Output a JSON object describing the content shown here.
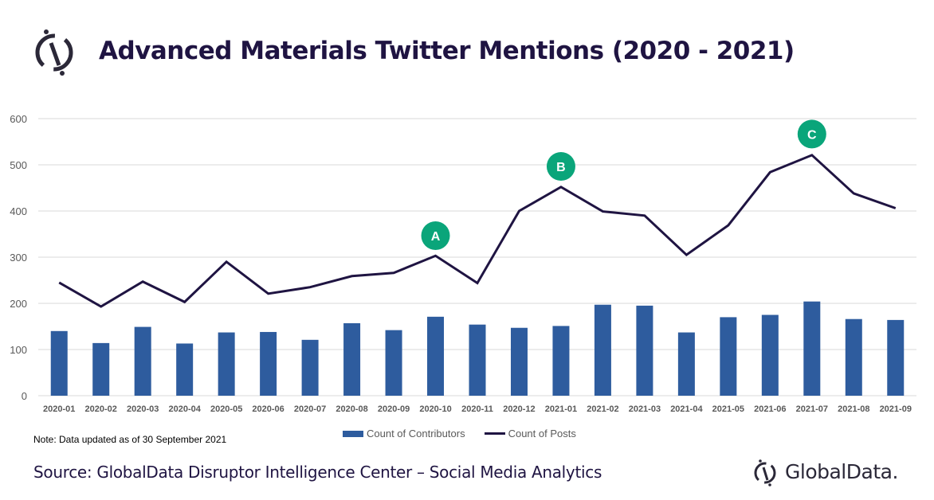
{
  "chart_data": {
    "type": "bar",
    "title": "Advanced Materials Twitter Mentions (2020 - 2021)",
    "xlabel": "",
    "ylabel": "",
    "ylim": [
      0,
      600
    ],
    "yticks": [
      "0",
      "100",
      "200",
      "300",
      "400",
      "500",
      "600"
    ],
    "grid": true,
    "legend_placement": "bottom",
    "categories": [
      "2020-01",
      "2020-02",
      "2020-03",
      "2020-04",
      "2020-05",
      "2020-06",
      "2020-07",
      "2020-08",
      "2020-09",
      "2020-10",
      "2020-11",
      "2020-12",
      "2021-01",
      "2021-02",
      "2021-03",
      "2021-04",
      "2021-05",
      "2021-06",
      "2021-07",
      "2021-08",
      "2021-09"
    ],
    "series": [
      {
        "name": "Count of Contributors",
        "type": "bar",
        "color": "#2e5c9e",
        "values": [
          140,
          114,
          149,
          113,
          137,
          138,
          121,
          157,
          142,
          171,
          154,
          147,
          151,
          197,
          195,
          137,
          170,
          175,
          204,
          166,
          164
        ]
      },
      {
        "name": "Count of Posts",
        "type": "line",
        "color": "#1f1442",
        "values": [
          245,
          193,
          247,
          203,
          290,
          221,
          235,
          259,
          266,
          303,
          244,
          400,
          452,
          399,
          390,
          305,
          369,
          484,
          521,
          438,
          406
        ]
      }
    ],
    "annotations": [
      {
        "label": "A",
        "category": "2020-10",
        "y": 350
      },
      {
        "label": "B",
        "category": "2021-01",
        "y": 500
      },
      {
        "label": "C",
        "category": "2021-07",
        "y": 570
      }
    ],
    "annotation_color": "#0aa57a"
  },
  "note": "Note:  Data updated as of 30 September  2021",
  "source": "Source: GlobalData Disruptor Intelligence Center – Social Media Analytics",
  "brand": "GlobalData."
}
